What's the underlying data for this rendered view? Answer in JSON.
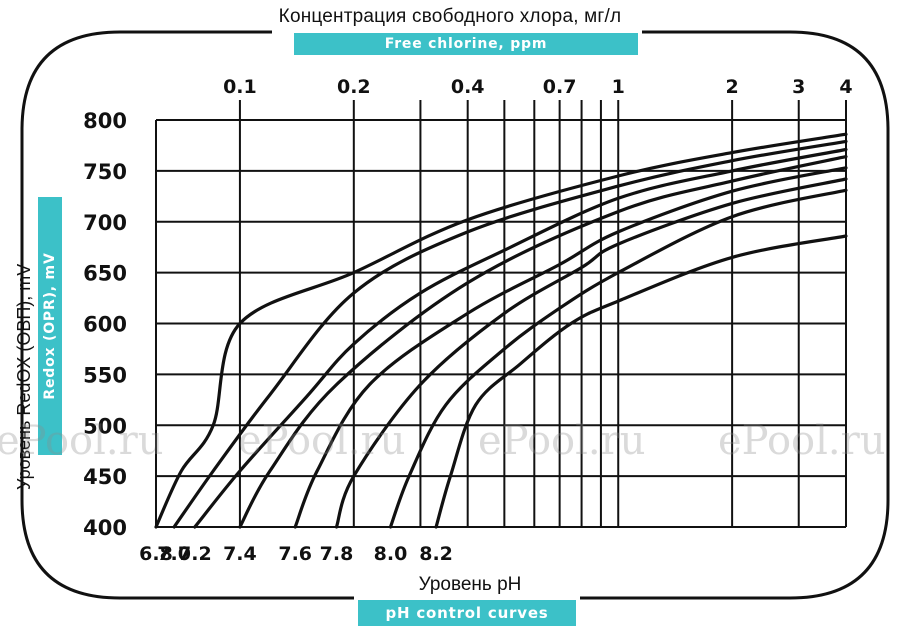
{
  "chart_data": {
    "type": "line",
    "title": "Концентрация свободного хлора, мг/л",
    "subtitle": "Free chlorine, ppm",
    "xlabel": "Уровень pH",
    "xlabel_sub": "pH control curves",
    "ylabel": "Уровень RedOX (ОВП), mV",
    "ylabel_sub": "Redox (OPR), mV",
    "ylim": [
      400,
      800
    ],
    "yticks": [
      "400",
      "450",
      "500",
      "550",
      "600",
      "650",
      "700",
      "750",
      "800"
    ],
    "top_axis": {
      "scale": "log",
      "range": [
        0.06,
        4
      ],
      "ticks": [
        0.1,
        0.2,
        0.3,
        0.4,
        0.5,
        0.6,
        0.7,
        0.8,
        0.9,
        1,
        2,
        3,
        4
      ],
      "labeled_ticks": [
        "0.1",
        "0.2",
        "0.4",
        "0.7",
        "1",
        "2",
        "3",
        "4"
      ]
    },
    "grid": true,
    "series": [
      {
        "name": "6.8",
        "points": [
          [
            0.06,
            400
          ],
          [
            0.07,
            455
          ],
          [
            0.085,
            500
          ],
          [
            0.1,
            600
          ],
          [
            0.2,
            650
          ],
          [
            0.4,
            702
          ],
          [
            1,
            745
          ],
          [
            2,
            768
          ],
          [
            4,
            786
          ]
        ]
      },
      {
        "name": "7.0",
        "points": [
          [
            0.067,
            400
          ],
          [
            0.085,
            455
          ],
          [
            0.12,
            530
          ],
          [
            0.2,
            630
          ],
          [
            0.4,
            690
          ],
          [
            1,
            735
          ],
          [
            2,
            760
          ],
          [
            4,
            779
          ]
        ]
      },
      {
        "name": "7.2",
        "points": [
          [
            0.076,
            400
          ],
          [
            0.1,
            455
          ],
          [
            0.15,
            528
          ],
          [
            0.2,
            580
          ],
          [
            0.3,
            630
          ],
          [
            0.5,
            672
          ],
          [
            1,
            723
          ],
          [
            2,
            750
          ],
          [
            4,
            771
          ]
        ]
      },
      {
        "name": "7.4",
        "points": [
          [
            0.1,
            400
          ],
          [
            0.12,
            455
          ],
          [
            0.18,
            540
          ],
          [
            0.4,
            640
          ],
          [
            1,
            710
          ],
          [
            2,
            740
          ],
          [
            4,
            764
          ]
        ]
      },
      {
        "name": "7.6",
        "points": [
          [
            0.14,
            400
          ],
          [
            0.16,
            455
          ],
          [
            0.22,
            540
          ],
          [
            0.4,
            610
          ],
          [
            0.7,
            658
          ],
          [
            1,
            690
          ],
          [
            2,
            730
          ],
          [
            4,
            753
          ]
        ]
      },
      {
        "name": "7.8",
        "points": [
          [
            0.18,
            400
          ],
          [
            0.2,
            450
          ],
          [
            0.3,
            540
          ],
          [
            0.5,
            610
          ],
          [
            0.8,
            655
          ],
          [
            1,
            678
          ],
          [
            2,
            718
          ],
          [
            4,
            742
          ]
        ]
      },
      {
        "name": "8.0",
        "points": [
          [
            0.25,
            400
          ],
          [
            0.28,
            450
          ],
          [
            0.35,
            520
          ],
          [
            0.5,
            575
          ],
          [
            0.7,
            615
          ],
          [
            1,
            650
          ],
          [
            2,
            705
          ],
          [
            4,
            731
          ]
        ]
      },
      {
        "name": "8.2",
        "points": [
          [
            0.33,
            400
          ],
          [
            0.36,
            450
          ],
          [
            0.42,
            520
          ],
          [
            0.55,
            560
          ],
          [
            0.75,
            600
          ],
          [
            1,
            622
          ],
          [
            2,
            665
          ],
          [
            4,
            686
          ]
        ]
      }
    ],
    "watermark": "ePool.ru"
  }
}
